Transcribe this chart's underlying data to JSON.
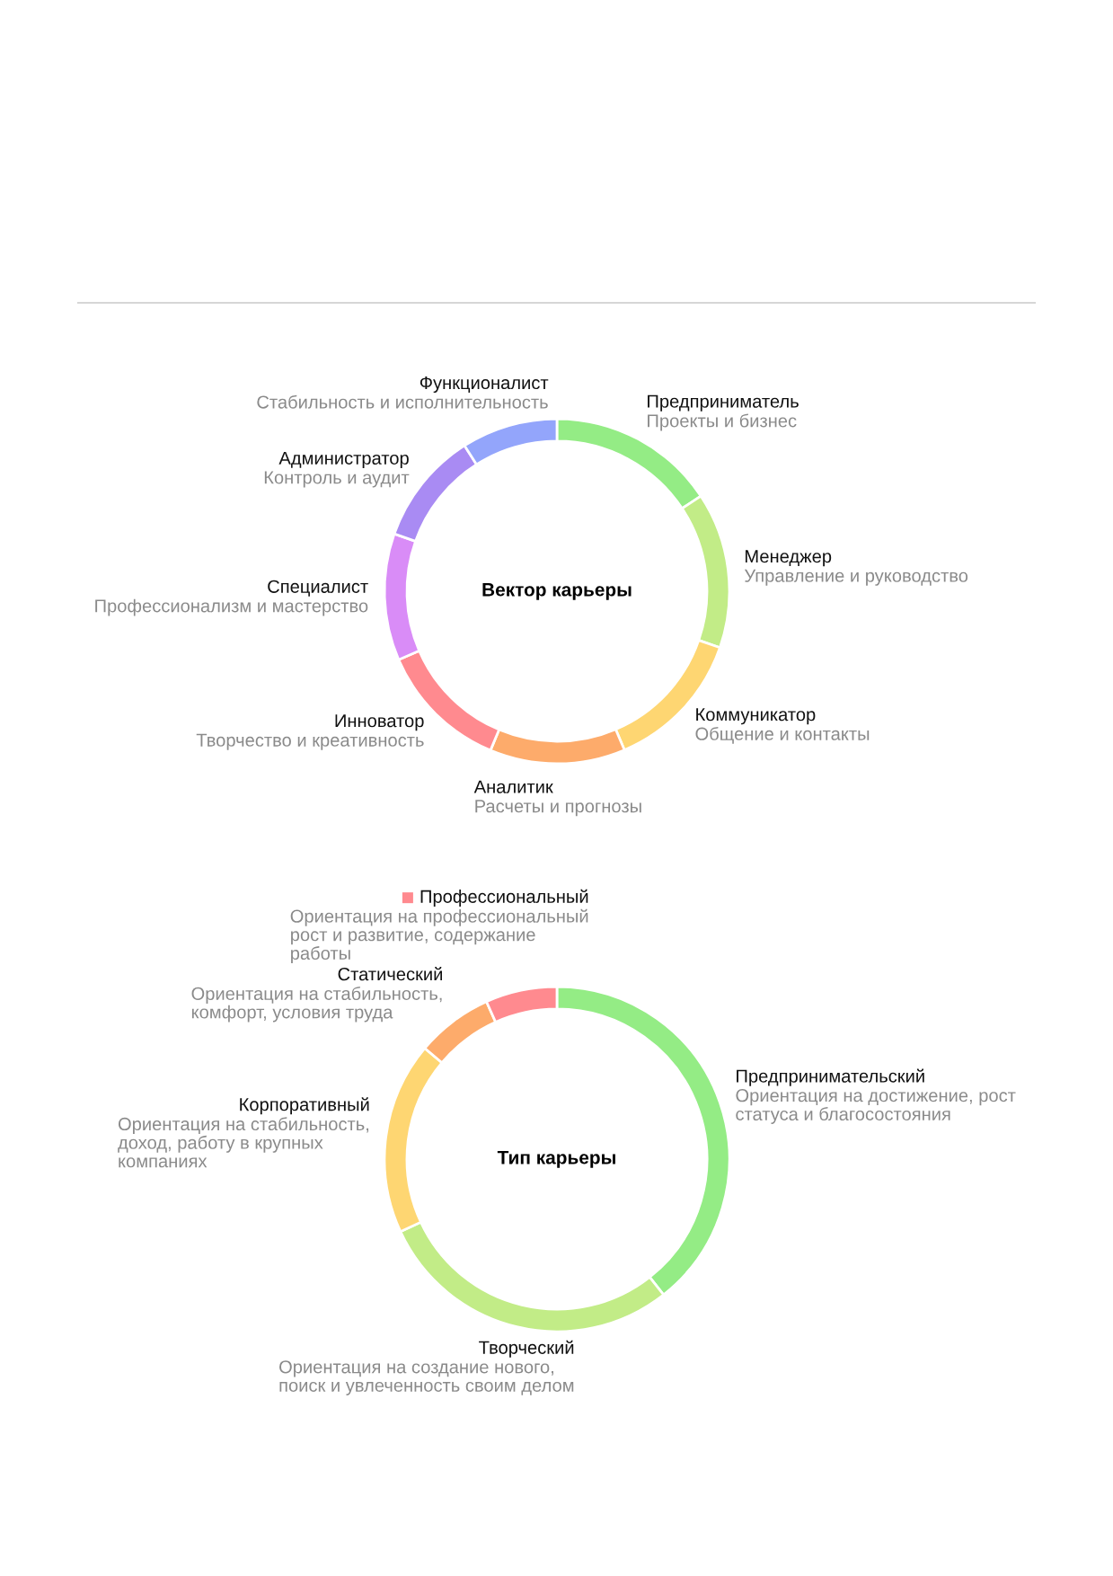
{
  "chart_data": [
    {
      "type": "donut",
      "title": "Вектор карьеры",
      "categories": [
        "Предприниматель",
        "Менеджер",
        "Коммуникатор",
        "Аналитик",
        "Инноватор",
        "Специалист",
        "Администратор",
        "Функционалист"
      ],
      "values": [
        15.7,
        14.6,
        13.3,
        12.7,
        12.2,
        11.9,
        10.6,
        9.0
      ],
      "colors": [
        "#94ec85",
        "#c2ec87",
        "#fed672",
        "#fdab6b",
        "#ff8a8f",
        "#d98cf7",
        "#a98bf3",
        "#93a5fb"
      ],
      "annotations": [
        "Проекты и бизнес",
        "Управление и руководство",
        "Общение и контакты",
        "Расчеты и прогнозы",
        "Творчество и креативность",
        "Профессионализм и мастерство",
        "Контроль и аудит",
        "Стабильность и исполнительность"
      ]
    },
    {
      "type": "donut",
      "title": "Тип карьеры",
      "categories": [
        "Предпринимательский",
        "Творческий",
        "Корпоративный",
        "Статический",
        "Профессиональный"
      ],
      "values": [
        39.4,
        28.7,
        18.0,
        7.2,
        6.7
      ],
      "colors": [
        "#94ec85",
        "#c2ec87",
        "#fed672",
        "#fdab6b",
        "#ff8a8f"
      ],
      "annotations": [
        "Ориентация на достижение, рост\nстатуса и благосостояния",
        "Ориентация на создание нового,\nпоиск и увлеченность своим делом",
        "Ориентация на стабильность,\nдоход, работу в крупных\nкомпаниях",
        "Ориентация на стабильность,\nкомфорт, условия труда",
        "Ориентация на профессиональный\nрост и развитие, содержание\nработы"
      ]
    }
  ]
}
